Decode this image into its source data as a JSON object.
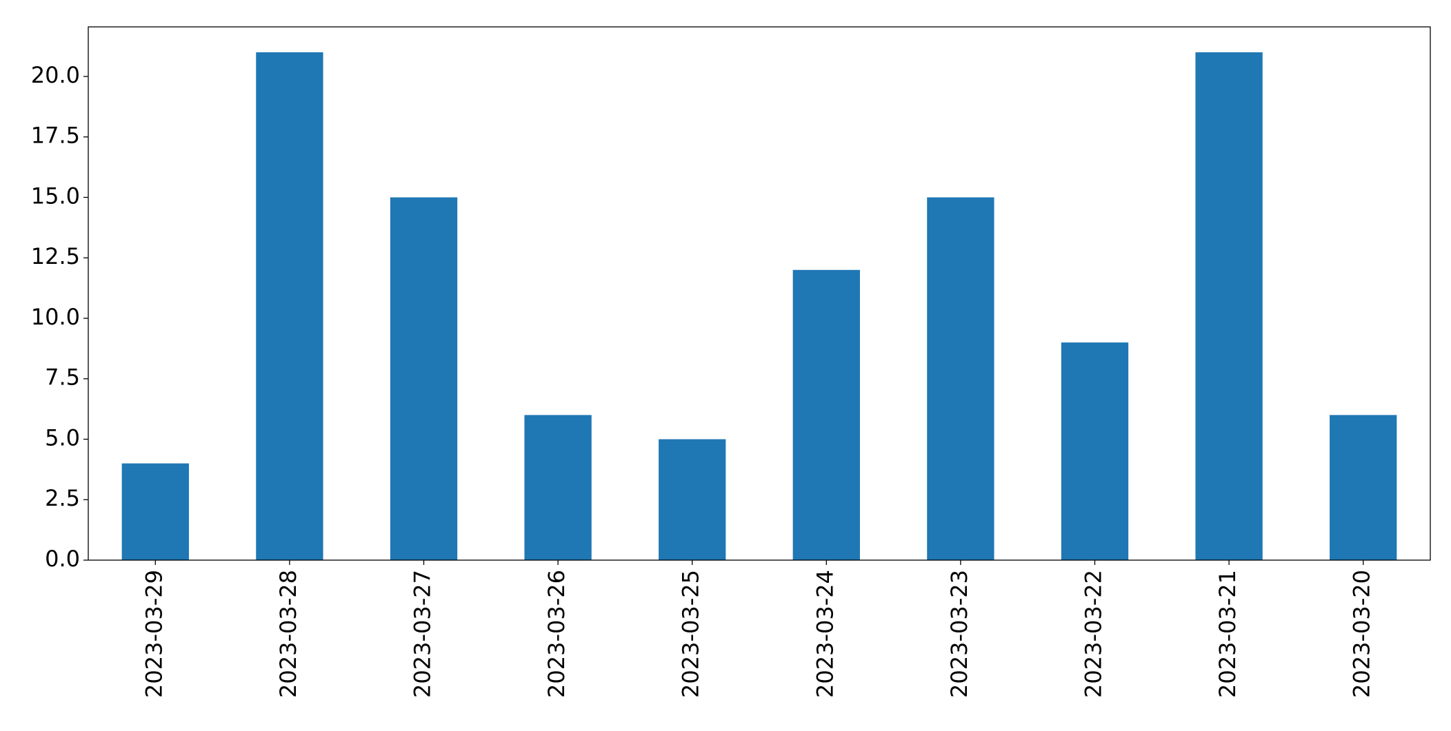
{
  "chart_data": {
    "type": "bar",
    "categories": [
      "2023-03-29",
      "2023-03-28",
      "2023-03-27",
      "2023-03-26",
      "2023-03-25",
      "2023-03-24",
      "2023-03-23",
      "2023-03-22",
      "2023-03-21",
      "2023-03-20"
    ],
    "values": [
      4,
      21,
      15,
      6,
      5,
      12,
      15,
      9,
      21,
      6
    ],
    "color": "#1f77b4",
    "ylim": [
      0,
      22.05
    ],
    "yticks": [
      {
        "value": 0,
        "label": "0.0"
      },
      {
        "value": 2.5,
        "label": "2.5"
      },
      {
        "value": 5,
        "label": "5.0"
      },
      {
        "value": 7.5,
        "label": "7.5"
      },
      {
        "value": 10,
        "label": "10.0"
      },
      {
        "value": 12.5,
        "label": "12.5"
      },
      {
        "value": 15,
        "label": "15.0"
      },
      {
        "value": 17.5,
        "label": "17.5"
      },
      {
        "value": 20,
        "label": "20.0"
      }
    ],
    "grid": false
  }
}
